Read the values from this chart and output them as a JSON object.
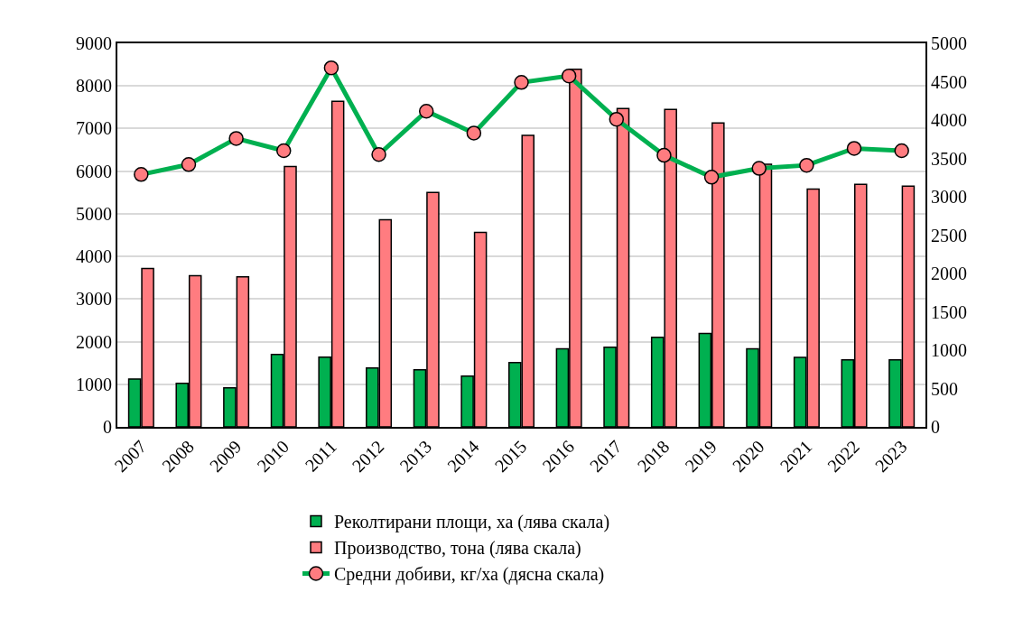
{
  "chart_data": {
    "type": "bar",
    "categories": [
      "2007",
      "2008",
      "2009",
      "2010",
      "2011",
      "2012",
      "2013",
      "2014",
      "2015",
      "2016",
      "2017",
      "2018",
      "2019",
      "2020",
      "2021",
      "2022",
      "2023"
    ],
    "series": [
      {
        "name": "Реколтирани площи, ха (лява скала)",
        "color": "#00b050",
        "values": [
          1125,
          1020,
          915,
          1700,
          1635,
          1380,
          1340,
          1190,
          1510,
          1830,
          1870,
          2100,
          2190,
          1830,
          1630,
          1570,
          1570
        ]
      },
      {
        "name": "Производство, тона (лява скала)",
        "color": "#ff7c80",
        "values": [
          3715,
          3545,
          3520,
          6110,
          7640,
          4860,
          5500,
          4565,
          6840,
          8390,
          7470,
          7450,
          7130,
          6160,
          5580,
          5690,
          5650
        ]
      },
      {
        "name": "Средни добиви, кг/ха (дясна скала)",
        "type": "line",
        "axis": "y2",
        "color": "#00b050",
        "marker": "circle",
        "line_style": "solid",
        "values": [
          3290,
          3420,
          3760,
          3600,
          4680,
          3550,
          4115,
          3830,
          4490,
          4575,
          4010,
          3540,
          3255,
          3370,
          3410,
          3630,
          3600
        ]
      }
    ],
    "ylim": [
      0,
      9000
    ],
    "yticks": [
      0,
      1000,
      2000,
      3000,
      4000,
      5000,
      6000,
      7000,
      8000,
      9000
    ],
    "y2lim": [
      0,
      5000
    ],
    "y2ticks": [
      0,
      500,
      1000,
      1500,
      2000,
      2500,
      3000,
      3500,
      4000,
      4500,
      5000
    ],
    "grid": "y",
    "legend": "bottom"
  }
}
